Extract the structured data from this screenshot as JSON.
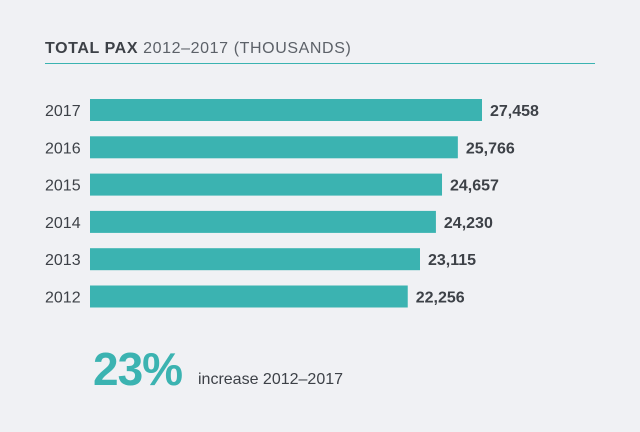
{
  "header": {
    "title_bold": "TOTAL PAX",
    "title_rest": "2012–2017 (THOUSANDS)"
  },
  "summary": {
    "value": "23%",
    "label": "increase 2012–2017"
  },
  "colors": {
    "bar": "#3bb3b1",
    "text": "#3d4147",
    "background": "#f0f1f4"
  },
  "chart_data": {
    "type": "bar",
    "orientation": "horizontal",
    "title": "TOTAL PAX 2012–2017 (THOUSANDS)",
    "categories": [
      "2017",
      "2016",
      "2015",
      "2014",
      "2013",
      "2012"
    ],
    "values": [
      27458,
      25766,
      24657,
      24230,
      23115,
      22256
    ],
    "value_labels": [
      "27,458",
      "25,766",
      "24,657",
      "24,230",
      "23,115",
      "22,256"
    ],
    "xlabel": "",
    "ylabel": "",
    "grid": false,
    "legend": "none"
  }
}
